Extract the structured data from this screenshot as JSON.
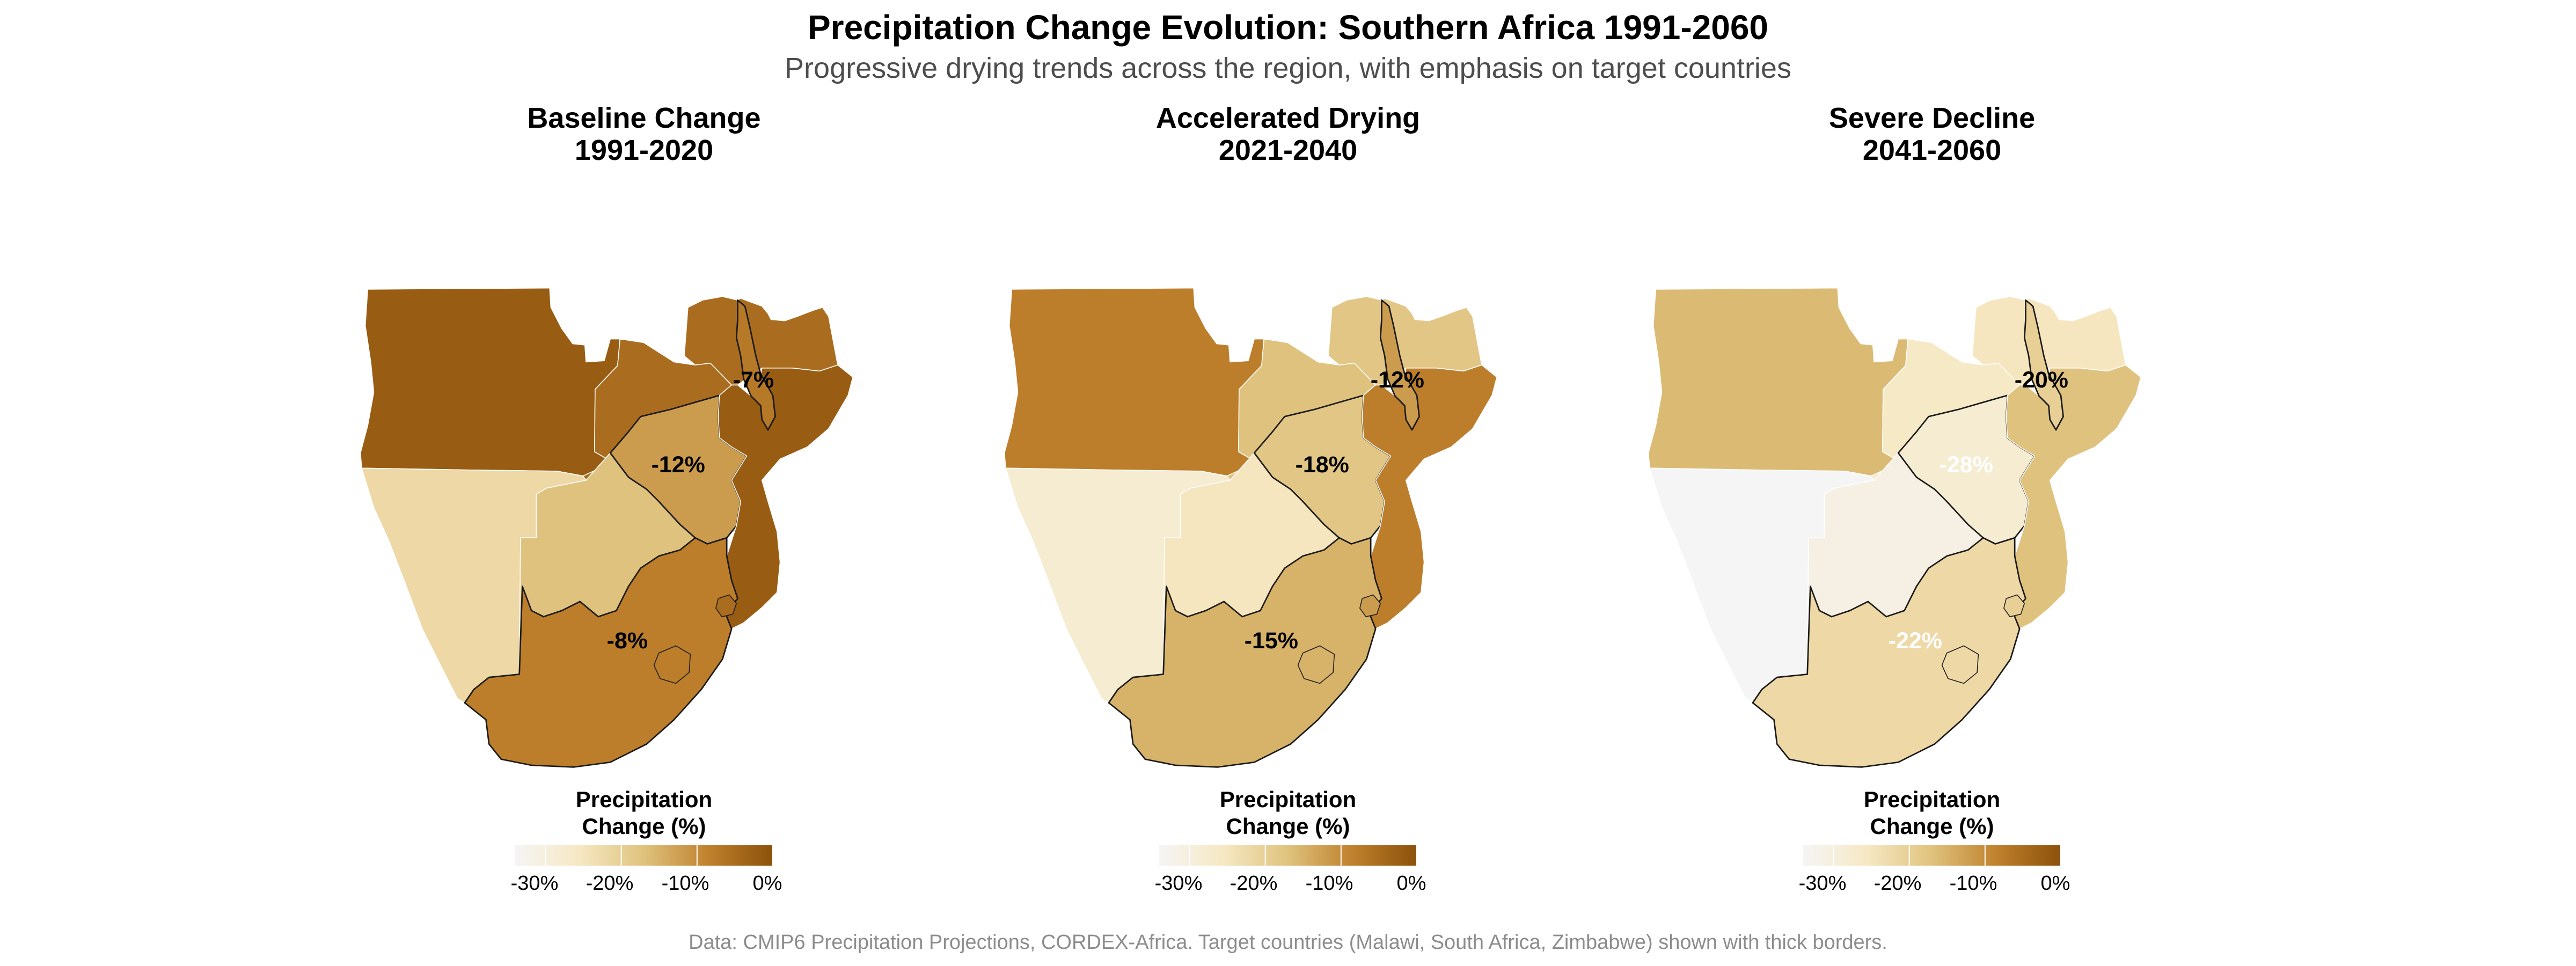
{
  "title": "Precipitation Change Evolution: Southern Africa 1991-2060",
  "subtitle": "Progressive drying trends across the region, with emphasis on target countries",
  "caption": "Data: CMIP6 Precipitation Projections, CORDEX-Africa. Target countries (Malawi, South Africa, Zimbabwe) shown with thick borders.",
  "legend": {
    "title_line1": "Precipitation",
    "title_line2": "Change (%)",
    "ticks": [
      "-30%",
      "-20%",
      "-10%",
      "0%"
    ],
    "tick_values": [
      -30,
      -20,
      -10,
      0
    ],
    "range": [
      -34,
      0
    ]
  },
  "panels": [
    {
      "title_line1": "Baseline Change",
      "title_line2": "1991-2020",
      "countries": {
        "angola": -2,
        "zambia": -5,
        "tanzania": -5,
        "malawi": -7,
        "mozambique": -2,
        "namibia": -22,
        "botswana": -17,
        "zimbabwe": -12,
        "south_africa": -8,
        "lesotho": -8,
        "eswatini": -5
      },
      "labels": {
        "malawi": "-7%",
        "zimbabwe": "-12%",
        "south_africa": "-8%"
      }
    },
    {
      "title_line1": "Accelerated Drying",
      "title_line2": "2021-2040",
      "countries": {
        "angola": -8,
        "zambia": -17,
        "tanzania": -18,
        "malawi": -12,
        "mozambique": -8,
        "namibia": -28,
        "botswana": -25,
        "zimbabwe": -18,
        "south_africa": -15,
        "lesotho": -15,
        "eswatini": -12
      },
      "labels": {
        "malawi": "-12%",
        "zimbabwe": "-18%",
        "south_africa": "-15%"
      }
    },
    {
      "title_line1": "Severe Decline",
      "title_line2": "2041-2060",
      "countries": {
        "angola": -16,
        "zambia": -26,
        "tanzania": -25,
        "malawi": -20,
        "mozambique": -17,
        "namibia": -34,
        "botswana": -31,
        "zimbabwe": -28,
        "south_africa": -22,
        "lesotho": -22,
        "eswatini": -20
      },
      "labels": {
        "malawi": "-20%",
        "zimbabwe": "-28%",
        "south_africa": "-22%"
      }
    }
  ],
  "colors": {
    "scale": [
      "#f5f5f5",
      "#f6e8c3",
      "#dfc27d",
      "#bf812d",
      "#8c510a"
    ],
    "label_dark": "#000000",
    "label_light": "#ffffff",
    "border_thin": "#ffffff",
    "border_thick": "#1a1a1a"
  }
}
